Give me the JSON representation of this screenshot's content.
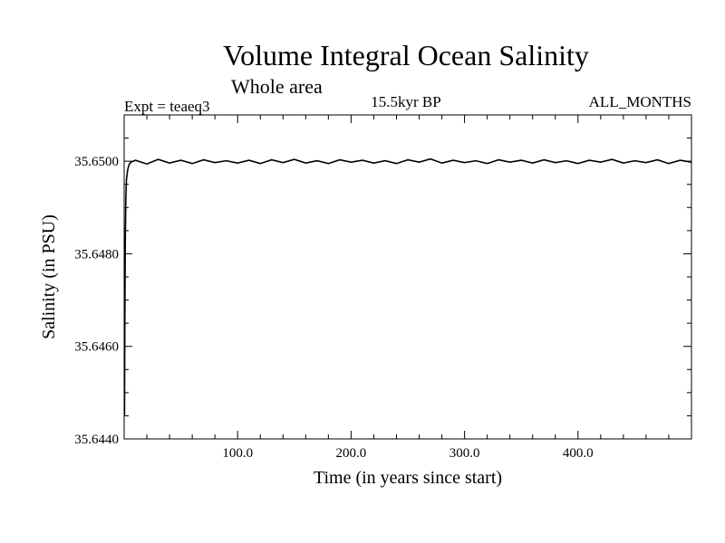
{
  "chart_data": {
    "type": "line",
    "title": "Volume Integral Ocean Salinity",
    "subtitle": "Whole area",
    "experiment_label": "Expt = teaeq3",
    "period_label": "15.5kyr BP",
    "months_label": "ALL_MONTHS",
    "xlabel": "Time (in years since start)",
    "ylabel": "Salinity (in PSU)",
    "xlim": [
      0,
      500
    ],
    "ylim": [
      35.644,
      35.651
    ],
    "x_tick_labels": [
      {
        "value": 100,
        "label": "100.0"
      },
      {
        "value": 200,
        "label": "200.0"
      },
      {
        "value": 300,
        "label": "300.0"
      },
      {
        "value": 400,
        "label": "400.0"
      }
    ],
    "y_tick_labels": [
      {
        "value": 35.644,
        "label": "35.6440"
      },
      {
        "value": 35.646,
        "label": "35.6460"
      },
      {
        "value": 35.648,
        "label": "35.6480"
      },
      {
        "value": 35.65,
        "label": "35.6500"
      }
    ],
    "x_minor_step": 20,
    "y_minor_step": 0.0005,
    "series": [
      {
        "name": "Salinity",
        "color": "#000000",
        "x": [
          0.3,
          0.6,
          1,
          1.5,
          2,
          3,
          4,
          5,
          6,
          8,
          10,
          15,
          20,
          30,
          40,
          50,
          60,
          70,
          80,
          90,
          100,
          110,
          120,
          130,
          140,
          150,
          160,
          170,
          180,
          190,
          200,
          210,
          220,
          230,
          240,
          250,
          260,
          270,
          280,
          290,
          300,
          310,
          320,
          330,
          340,
          350,
          360,
          370,
          380,
          390,
          400,
          410,
          420,
          430,
          440,
          450,
          460,
          470,
          480,
          490,
          500
        ],
        "values": [
          35.6445,
          35.6465,
          35.6483,
          35.6492,
          35.6496,
          35.6498,
          35.6499,
          35.64995,
          35.64998,
          35.65,
          35.65002,
          35.64998,
          35.64994,
          35.65004,
          35.64996,
          35.65002,
          35.64995,
          35.65003,
          35.64997,
          35.65001,
          35.64996,
          35.65002,
          35.64995,
          35.65003,
          35.64997,
          35.65004,
          35.64996,
          35.65001,
          35.64995,
          35.65003,
          35.64998,
          35.65002,
          35.64996,
          35.65001,
          35.64995,
          35.65003,
          35.64998,
          35.65005,
          35.64996,
          35.65002,
          35.64997,
          35.65001,
          35.64995,
          35.65003,
          35.64998,
          35.65002,
          35.64996,
          35.65003,
          35.64997,
          35.65001,
          35.64995,
          35.65002,
          35.64998,
          35.65004,
          35.64996,
          35.65001,
          35.64997,
          35.65003,
          35.64995,
          35.65002,
          35.64998
        ]
      }
    ]
  }
}
